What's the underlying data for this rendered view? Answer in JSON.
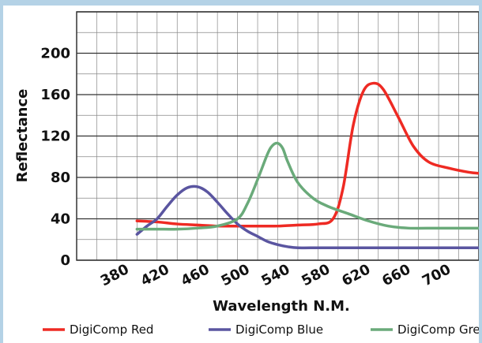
{
  "chart_data": {
    "type": "line",
    "title": "",
    "xlabel": "Wavelength N.M.",
    "ylabel": "Reflectance",
    "xlim": [
      340,
      740
    ],
    "ylim": [
      0,
      240
    ],
    "x_ticks": [
      380,
      420,
      460,
      500,
      540,
      580,
      620,
      660,
      700
    ],
    "y_ticks": [
      0,
      40,
      80,
      120,
      160,
      200
    ],
    "grid": true,
    "legend_position": "bottom",
    "series": [
      {
        "name": "DigiComp Red",
        "color": "#ee2a23",
        "x": [
          400,
          420,
          440,
          460,
          480,
          500,
          520,
          540,
          560,
          580,
          595,
          605,
          615,
          625,
          635,
          645,
          660,
          675,
          690,
          710,
          730,
          740
        ],
        "y": [
          38,
          37,
          35,
          34,
          33,
          33,
          33,
          33,
          34,
          35,
          40,
          70,
          130,
          163,
          171,
          165,
          138,
          110,
          95,
          89,
          85,
          84
        ]
      },
      {
        "name": "DigiComp Blue",
        "color": "#5a55a0",
        "x": [
          400,
          410,
          420,
          430,
          440,
          450,
          460,
          470,
          480,
          490,
          500,
          510,
          520,
          530,
          540,
          550,
          560,
          580,
          600,
          650,
          700,
          740
        ],
        "y": [
          25,
          33,
          40,
          52,
          63,
          70,
          71,
          66,
          56,
          45,
          35,
          28,
          23,
          18,
          15,
          13,
          12,
          12,
          12,
          12,
          12,
          12
        ]
      },
      {
        "name": "DigiComp Green",
        "color": "#6aaa7a",
        "x": [
          400,
          420,
          440,
          460,
          480,
          500,
          510,
          520,
          530,
          535,
          540,
          545,
          550,
          560,
          575,
          590,
          610,
          630,
          650,
          670,
          700,
          740
        ],
        "y": [
          30,
          30,
          30,
          31,
          33,
          40,
          55,
          78,
          103,
          111,
          113,
          108,
          95,
          75,
          60,
          52,
          45,
          38,
          33,
          31,
          31,
          31
        ]
      }
    ]
  }
}
